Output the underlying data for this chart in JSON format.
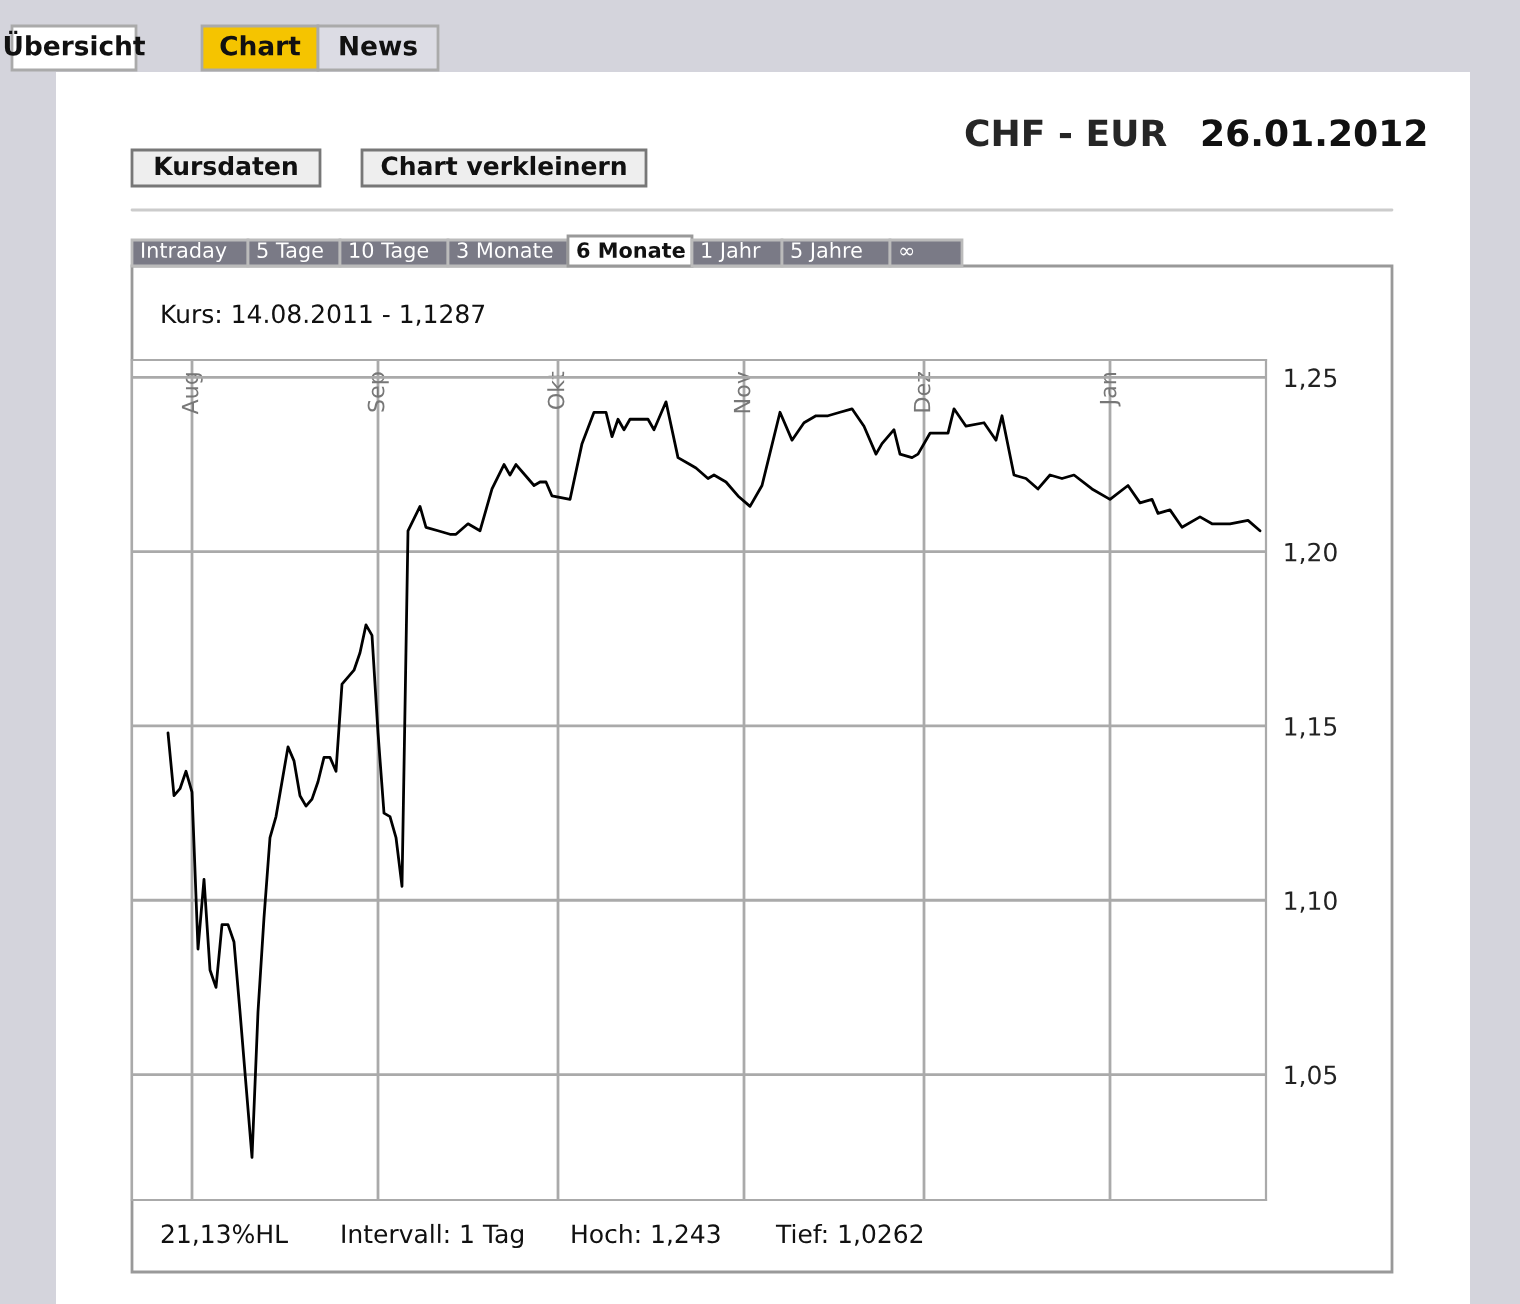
{
  "chart_data": {
    "type": "line",
    "title": "CHF - EUR",
    "annotations": [
      "26.01.2012",
      "Kurs: 14.08.2011 - 1,1287",
      "21,13%HL",
      "Intervall: 1 Tag",
      "Hoch: 1,243",
      "Tief: 1,0262",
      "Übersicht",
      "Chart",
      "News",
      "Kursdaten",
      "Chart verkleinern",
      "Intraday",
      "5 Tage",
      "10 Tage",
      "3 Monate",
      "6 Monate",
      "1 Jahr",
      "5 Jahre",
      "∞"
    ],
    "x": [
      "2011-07-28",
      "2011-07-29",
      "2011-07-30",
      "2011-07-31",
      "2011-08-01",
      "2011-08-02",
      "2011-08-03",
      "2011-08-04",
      "2011-08-05",
      "2011-08-06",
      "2011-08-07",
      "2011-08-08",
      "2011-08-09",
      "2011-08-10",
      "2011-08-11",
      "2011-08-12",
      "2011-08-13",
      "2011-08-14",
      "2011-08-15",
      "2011-08-16",
      "2011-08-17",
      "2011-08-18",
      "2011-08-19",
      "2011-08-20",
      "2011-08-21",
      "2011-08-22",
      "2011-08-23",
      "2011-08-24",
      "2011-08-25",
      "2011-08-26",
      "2011-08-28",
      "2011-08-29",
      "2011-08-30",
      "2011-08-31",
      "2011-09-01",
      "2011-09-02",
      "2011-09-03",
      "2011-09-04",
      "2011-09-05",
      "2011-09-06",
      "2011-09-08",
      "2011-09-09",
      "2011-09-11",
      "2011-09-13",
      "2011-09-14",
      "2011-09-16",
      "2011-09-17",
      "2011-09-18",
      "2011-09-20",
      "2011-09-22",
      "2011-09-23",
      "2011-09-24",
      "2011-09-26",
      "2011-09-27",
      "2011-09-28",
      "2011-09-29",
      "2011-09-30",
      "2011-10-03",
      "2011-10-05",
      "2011-10-07",
      "2011-10-09",
      "2011-10-10",
      "2011-10-11",
      "2011-10-12",
      "2011-10-13",
      "2011-10-16",
      "2011-10-17",
      "2011-10-19",
      "2011-10-21",
      "2011-10-23",
      "2011-10-24",
      "2011-10-26",
      "2011-10-27",
      "2011-10-29",
      "2011-10-31",
      "2011-11-02",
      "2011-11-04",
      "2011-11-05",
      "2011-11-07",
      "2011-11-09",
      "2011-11-11",
      "2011-11-13",
      "2011-11-15",
      "2011-11-17",
      "2011-11-19",
      "2011-11-21",
      "2011-11-23",
      "2011-11-24",
      "2011-11-26",
      "2011-11-27",
      "2011-11-29",
      "2011-11-30",
      "2011-12-02",
      "2011-12-04",
      "2011-12-05",
      "2011-12-06",
      "2011-12-08",
      "2011-12-11",
      "2011-12-13",
      "2011-12-14",
      "2011-12-16",
      "2011-12-18",
      "2011-12-20",
      "2011-12-22",
      "2011-12-24",
      "2011-12-26",
      "2011-12-29",
      "2012-01-01",
      "2012-01-04",
      "2012-01-06",
      "2012-01-08",
      "2012-01-09",
      "2012-01-11",
      "2012-01-13",
      "2012-01-16",
      "2012-01-18",
      "2012-01-21",
      "2012-01-24",
      "2012-01-26"
    ],
    "series": [
      {
        "color": "#000000",
        "values": [
          1.148,
          1.13,
          1.132,
          1.137,
          1.131,
          1.086,
          1.106,
          1.08,
          1.075,
          1.093,
          1.093,
          1.088,
          1.068,
          1.047,
          1.0262,
          1.068,
          1.095,
          1.118,
          1.124,
          1.134,
          1.144,
          1.14,
          1.13,
          1.127,
          1.129,
          1.134,
          1.141,
          1.141,
          1.137,
          1.162,
          1.166,
          1.171,
          1.179,
          1.176,
          1.148,
          1.125,
          1.124,
          1.118,
          1.104,
          1.206,
          1.213,
          1.207,
          1.206,
          1.205,
          1.205,
          1.208,
          1.207,
          1.206,
          1.218,
          1.225,
          1.222,
          1.225,
          1.221,
          1.219,
          1.22,
          1.22,
          1.216,
          1.215,
          1.231,
          1.24,
          1.24,
          1.233,
          1.238,
          1.235,
          1.238,
          1.238,
          1.235,
          1.243,
          1.227,
          1.225,
          1.224,
          1.221,
          1.222,
          1.22,
          1.216,
          1.213,
          1.219,
          1.226,
          1.24,
          1.232,
          1.237,
          1.239,
          1.239,
          1.24,
          1.241,
          1.236,
          1.228,
          1.231,
          1.235,
          1.228,
          1.227,
          1.228,
          1.234,
          1.234,
          1.234,
          1.241,
          1.236,
          1.237,
          1.232,
          1.239,
          1.222,
          1.221,
          1.218,
          1.222,
          1.221,
          1.222,
          1.218,
          1.215,
          1.219,
          1.214,
          1.215,
          1.211,
          1.212,
          1.207,
          1.21,
          1.208,
          1.208,
          1.209,
          1.206
        ]
      }
    ],
    "xlim": [
      "2011-07-22",
      "2012-01-27"
    ],
    "xticks": [
      {
        "value": "2011-08-01",
        "label": "Aug"
      },
      {
        "value": "2011-09-01",
        "label": "Sep"
      },
      {
        "value": "2011-10-01",
        "label": "Okt"
      },
      {
        "value": "2011-11-01",
        "label": "Nov"
      },
      {
        "value": "2011-12-01",
        "label": "Dez"
      },
      {
        "value": "2012-01-01",
        "label": "Jan"
      }
    ],
    "ylim": [
      1.014,
      1.255
    ],
    "yticks": [
      {
        "value": 1.05,
        "label": "1,05"
      },
      {
        "value": 1.1,
        "label": "1,10"
      },
      {
        "value": 1.15,
        "label": "1,15"
      },
      {
        "value": 1.2,
        "label": "1,20"
      },
      {
        "value": 1.25,
        "label": "1,25"
      }
    ],
    "grid": true,
    "line_style": "solid",
    "marker": "none"
  }
}
